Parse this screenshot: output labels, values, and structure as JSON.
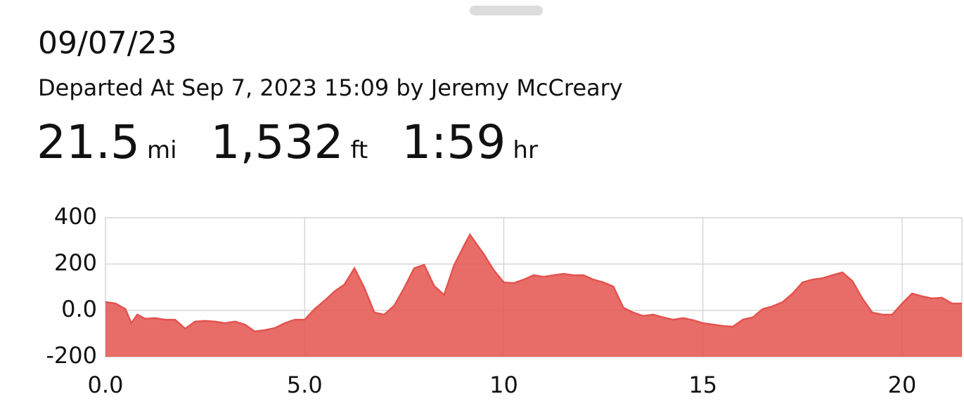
{
  "header": {
    "title": "09/07/23",
    "subtitle": "Departed At Sep 7, 2023 15:09 by Jeremy McCreary"
  },
  "stats": [
    {
      "value": "21.5",
      "unit": "mi"
    },
    {
      "value": "1,532",
      "unit": "ft"
    },
    {
      "value": "1:59",
      "unit": "hr"
    }
  ],
  "chart_data": {
    "type": "area",
    "color": "#e4534e",
    "x": [
      0,
      0.25,
      0.5,
      0.65,
      0.8,
      1.0,
      1.25,
      1.5,
      1.75,
      2.0,
      2.25,
      2.5,
      2.75,
      3.0,
      3.25,
      3.5,
      3.75,
      4.0,
      4.25,
      4.5,
      4.75,
      5.0,
      5.25,
      5.5,
      5.75,
      6.0,
      6.25,
      6.5,
      6.75,
      7.0,
      7.25,
      7.5,
      7.75,
      8.0,
      8.25,
      8.5,
      8.75,
      9.0,
      9.15,
      9.5,
      9.75,
      10.0,
      10.25,
      10.5,
      10.75,
      11.0,
      11.25,
      11.5,
      11.75,
      12.0,
      12.25,
      12.5,
      12.75,
      13.0,
      13.25,
      13.5,
      13.75,
      14.0,
      14.25,
      14.5,
      14.75,
      15.0,
      15.25,
      15.5,
      15.75,
      16.0,
      16.25,
      16.5,
      16.75,
      17.0,
      17.25,
      17.5,
      17.75,
      18.0,
      18.25,
      18.5,
      18.75,
      19.0,
      19.25,
      19.5,
      19.75,
      20.0,
      20.25,
      20.5,
      20.75,
      21.0,
      21.25,
      21.5
    ],
    "values": [
      36,
      30,
      6,
      -55,
      -18,
      -36,
      -33,
      -40,
      -40,
      -79,
      -48,
      -45,
      -48,
      -55,
      -48,
      -61,
      -91,
      -85,
      -76,
      -55,
      -40,
      -40,
      6,
      42,
      82,
      112,
      182,
      97,
      -9,
      -18,
      21,
      97,
      182,
      197,
      106,
      67,
      194,
      279,
      327,
      242,
      173,
      121,
      118,
      133,
      152,
      145,
      152,
      158,
      152,
      152,
      133,
      121,
      103,
      12,
      -9,
      -24,
      -18,
      -30,
      -40,
      -33,
      -42,
      -55,
      -61,
      -67,
      -70,
      -40,
      -30,
      6,
      18,
      36,
      73,
      121,
      133,
      139,
      152,
      164,
      127,
      52,
      -9,
      -18,
      -18,
      30,
      73,
      61,
      52,
      55,
      30,
      30
    ],
    "xlim": [
      0,
      21.5
    ],
    "ylim": [
      -200,
      400
    ],
    "xticks": [
      {
        "value": 0,
        "label": "0.0"
      },
      {
        "value": 5,
        "label": "5.0"
      },
      10,
      15,
      20
    ],
    "yticks": [
      -200,
      {
        "value": 0,
        "label": "0.0"
      },
      200,
      400
    ],
    "grid": true
  }
}
